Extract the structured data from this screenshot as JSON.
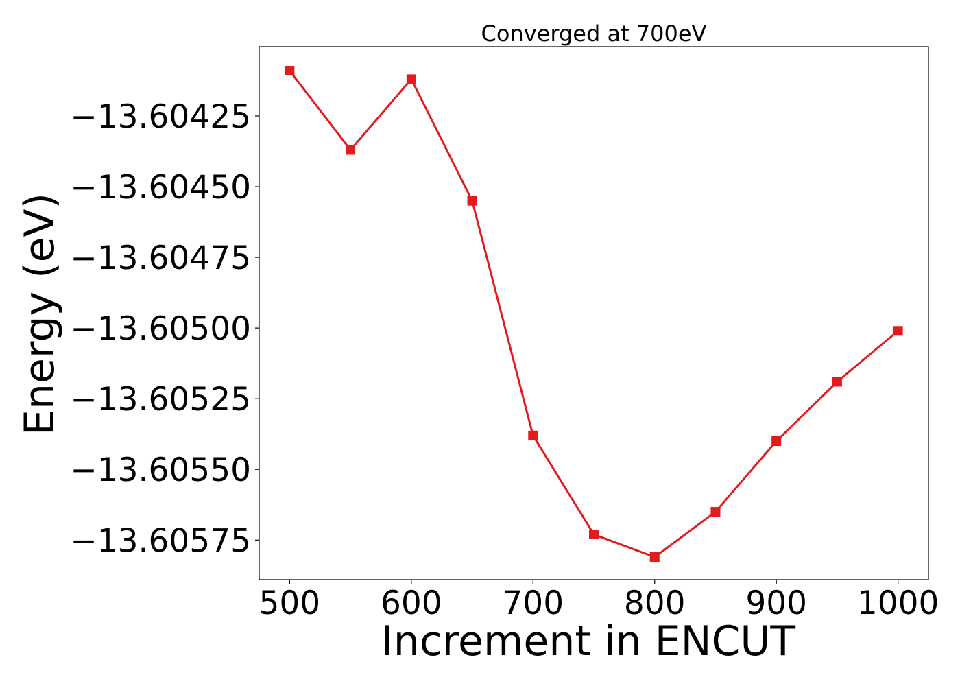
{
  "chart_data": {
    "type": "line",
    "title": "Converged at 700eV",
    "xlabel": "Increment in ENCUT",
    "ylabel": "Energy (eV)",
    "x": [
      500,
      550,
      600,
      650,
      700,
      750,
      800,
      850,
      900,
      950,
      1000
    ],
    "series": [
      {
        "values": [
          -13.60409,
          -13.60437,
          -13.60412,
          -13.60455,
          -13.60538,
          -13.60573,
          -13.60581,
          -13.60565,
          -13.6054,
          -13.60519,
          -13.60501
        ],
        "color": "#e41a1c",
        "marker": "square"
      }
    ],
    "xlim": [
      475,
      1025
    ],
    "ylim": [
      -13.60589,
      -13.604005
    ],
    "xticks": [
      500,
      600,
      700,
      800,
      900,
      1000
    ],
    "xtick_labels": [
      "500",
      "600",
      "700",
      "800",
      "900",
      "1000"
    ],
    "yticks": [
      -13.60425,
      -13.6045,
      -13.60475,
      -13.605,
      -13.60525,
      -13.6055,
      -13.60575
    ],
    "ytick_labels": [
      "−13.60425",
      "−13.60450",
      "−13.60475",
      "−13.60500",
      "−13.60525",
      "−13.60550",
      "−13.60575"
    ],
    "grid": false,
    "legend": "none"
  }
}
